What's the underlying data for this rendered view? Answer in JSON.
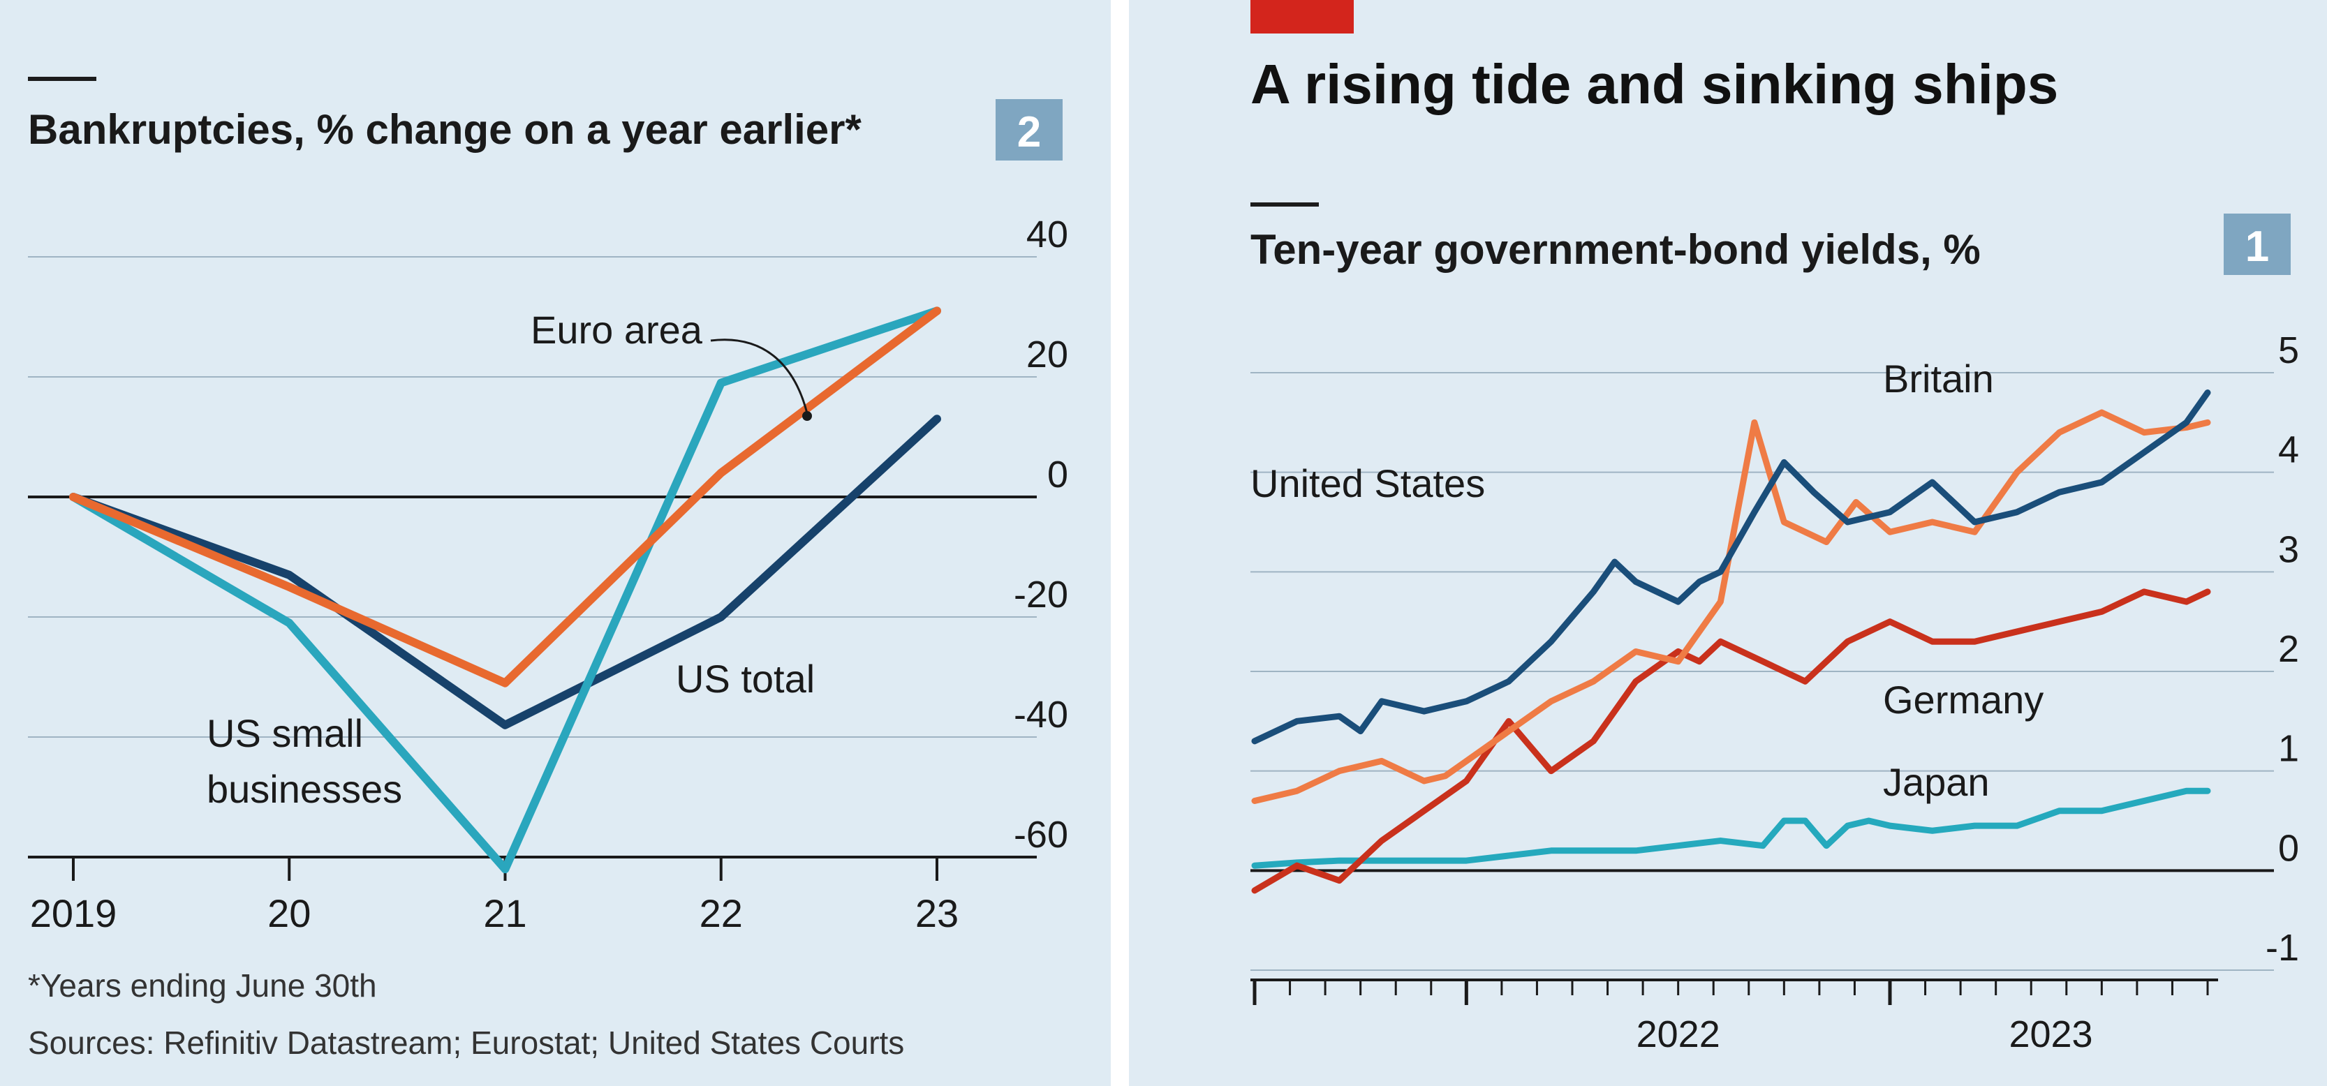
{
  "left": {
    "badge": "2",
    "note": "*Years ending June 30th",
    "sources": "Sources: Refinitiv Datastream; Eurostat; United States Courts",
    "labels": {
      "euro_area": "Euro area",
      "us_total": "US total",
      "us_small_line1": "US small",
      "us_small_line2": "businesses"
    }
  },
  "right": {
    "headline": "A rising tide and sinking ships",
    "badge": "1",
    "labels": {
      "britain": "Britain",
      "united_states": "United States",
      "germany": "Germany",
      "japan": "Japan"
    }
  },
  "colors": {
    "euro_area": "#e8692f",
    "us_total": "#17426b",
    "us_small": "#2aa6bd",
    "britain": "#ef7b45",
    "united_states": "#1a4e7a",
    "germany": "#c9311c",
    "japan": "#25a9bd",
    "accent_red": "#d3251c",
    "badge": "#7fa6c1"
  },
  "chart_data": [
    {
      "type": "line",
      "title": "Bankruptcies, % change on a year earlier*",
      "x": [
        "2019",
        "20",
        "21",
        "22",
        "23"
      ],
      "ylim": [
        -60,
        40
      ],
      "yticks": [
        40,
        20,
        0,
        -20,
        -40,
        -60
      ],
      "series": [
        {
          "name": "Euro area",
          "values": [
            0,
            -15,
            -31,
            4,
            31
          ]
        },
        {
          "name": "US total",
          "values": [
            0,
            -13,
            -38,
            -20,
            13
          ]
        },
        {
          "name": "US small businesses",
          "values": [
            0,
            -21,
            -62,
            19,
            31
          ]
        }
      ]
    },
    {
      "type": "line",
      "title": "Ten-year government-bond yields, %",
      "x_labels": [
        "2022",
        "2023"
      ],
      "ylim": [
        -1,
        5
      ],
      "yticks": [
        5,
        4,
        3,
        2,
        1,
        0,
        -1
      ],
      "series": [
        {
          "name": "Britain",
          "points": [
            [
              2021.5,
              0.7
            ],
            [
              2021.6,
              0.8
            ],
            [
              2021.7,
              1.0
            ],
            [
              2021.8,
              1.1
            ],
            [
              2021.9,
              0.9
            ],
            [
              2021.95,
              0.95
            ],
            [
              2022.0,
              1.1
            ],
            [
              2022.1,
              1.4
            ],
            [
              2022.2,
              1.7
            ],
            [
              2022.3,
              1.9
            ],
            [
              2022.4,
              2.2
            ],
            [
              2022.5,
              2.1
            ],
            [
              2022.6,
              2.7
            ],
            [
              2022.68,
              4.5
            ],
            [
              2022.75,
              3.5
            ],
            [
              2022.85,
              3.3
            ],
            [
              2022.92,
              3.7
            ],
            [
              2023.0,
              3.4
            ],
            [
              2023.1,
              3.5
            ],
            [
              2023.2,
              3.4
            ],
            [
              2023.3,
              4.0
            ],
            [
              2023.4,
              4.4
            ],
            [
              2023.5,
              4.6
            ],
            [
              2023.6,
              4.4
            ],
            [
              2023.7,
              4.45
            ],
            [
              2023.75,
              4.5
            ]
          ]
        },
        {
          "name": "United States",
          "points": [
            [
              2021.5,
              1.3
            ],
            [
              2021.6,
              1.5
            ],
            [
              2021.7,
              1.55
            ],
            [
              2021.75,
              1.4
            ],
            [
              2021.8,
              1.7
            ],
            [
              2021.9,
              1.6
            ],
            [
              2022.0,
              1.7
            ],
            [
              2022.1,
              1.9
            ],
            [
              2022.2,
              2.3
            ],
            [
              2022.3,
              2.8
            ],
            [
              2022.35,
              3.1
            ],
            [
              2022.4,
              2.9
            ],
            [
              2022.45,
              2.8
            ],
            [
              2022.5,
              2.7
            ],
            [
              2022.55,
              2.9
            ],
            [
              2022.6,
              3.0
            ],
            [
              2022.68,
              3.6
            ],
            [
              2022.75,
              4.1
            ],
            [
              2022.82,
              3.8
            ],
            [
              2022.9,
              3.5
            ],
            [
              2023.0,
              3.6
            ],
            [
              2023.1,
              3.9
            ],
            [
              2023.2,
              3.5
            ],
            [
              2023.3,
              3.6
            ],
            [
              2023.4,
              3.8
            ],
            [
              2023.5,
              3.9
            ],
            [
              2023.6,
              4.2
            ],
            [
              2023.7,
              4.5
            ],
            [
              2023.75,
              4.8
            ]
          ]
        },
        {
          "name": "Germany",
          "points": [
            [
              2021.5,
              -0.2
            ],
            [
              2021.6,
              0.05
            ],
            [
              2021.7,
              -0.1
            ],
            [
              2021.8,
              0.3
            ],
            [
              2021.9,
              0.6
            ],
            [
              2022.0,
              0.9
            ],
            [
              2022.1,
              1.5
            ],
            [
              2022.2,
              1.0
            ],
            [
              2022.3,
              1.3
            ],
            [
              2022.4,
              1.9
            ],
            [
              2022.5,
              2.2
            ],
            [
              2022.55,
              2.1
            ],
            [
              2022.6,
              2.3
            ],
            [
              2022.7,
              2.1
            ],
            [
              2022.8,
              1.9
            ],
            [
              2022.9,
              2.3
            ],
            [
              2023.0,
              2.5
            ],
            [
              2023.1,
              2.3
            ],
            [
              2023.2,
              2.3
            ],
            [
              2023.3,
              2.4
            ],
            [
              2023.4,
              2.5
            ],
            [
              2023.5,
              2.6
            ],
            [
              2023.6,
              2.8
            ],
            [
              2023.7,
              2.7
            ],
            [
              2023.75,
              2.8
            ]
          ]
        },
        {
          "name": "Japan",
          "points": [
            [
              2021.5,
              0.05
            ],
            [
              2021.6,
              0.08
            ],
            [
              2021.7,
              0.1
            ],
            [
              2021.8,
              0.1
            ],
            [
              2021.9,
              0.1
            ],
            [
              2022.0,
              0.1
            ],
            [
              2022.1,
              0.15
            ],
            [
              2022.2,
              0.2
            ],
            [
              2022.3,
              0.2
            ],
            [
              2022.4,
              0.2
            ],
            [
              2022.5,
              0.25
            ],
            [
              2022.6,
              0.3
            ],
            [
              2022.7,
              0.25
            ],
            [
              2022.75,
              0.5
            ],
            [
              2022.8,
              0.5
            ],
            [
              2022.85,
              0.25
            ],
            [
              2022.9,
              0.45
            ],
            [
              2022.95,
              0.5
            ],
            [
              2023.0,
              0.45
            ],
            [
              2023.1,
              0.4
            ],
            [
              2023.2,
              0.45
            ],
            [
              2023.3,
              0.45
            ],
            [
              2023.4,
              0.6
            ],
            [
              2023.5,
              0.6
            ],
            [
              2023.6,
              0.7
            ],
            [
              2023.7,
              0.8
            ],
            [
              2023.75,
              0.8
            ]
          ]
        }
      ]
    }
  ]
}
